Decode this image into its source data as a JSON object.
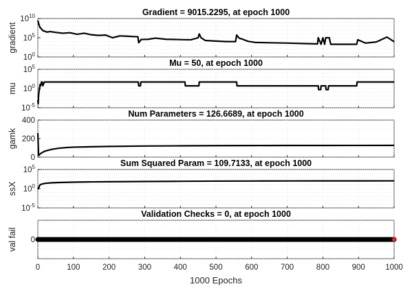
{
  "chart_data": [
    {
      "type": "line",
      "title": "Gradient = 9015.2295, at epoch 1000",
      "xlabel": "",
      "ylabel": "gradient",
      "yscale": "log",
      "ylim": [
        1,
        10000000000
      ],
      "yticks": [
        {
          "base": "10",
          "exp": "0",
          "value": 1
        },
        {
          "base": "10",
          "exp": "5",
          "value": 100000
        },
        {
          "base": "10",
          "exp": "10",
          "value": 10000000000
        }
      ],
      "xlim": [
        0,
        1000
      ],
      "grid": true,
      "series": [
        {
          "x": [
            0,
            3,
            6,
            10,
            15,
            20,
            25,
            35,
            50,
            70,
            90,
            110,
            130,
            150,
            170,
            190,
            210,
            230,
            250,
            270,
            281,
            283,
            290,
            310,
            330,
            360,
            390,
            415,
            430,
            450,
            453,
            458,
            470,
            490,
            510,
            530,
            555,
            558,
            565,
            575,
            590,
            610,
            650,
            700,
            750,
            785,
            787,
            795,
            800,
            805,
            808,
            818,
            822,
            840,
            870,
            895,
            898,
            920,
            950,
            980,
            1000
          ],
          "y": [
            3000000000.0,
            300000000.0,
            50000000.0,
            20000000.0,
            6000000.0,
            5000000.0,
            3000000.0,
            4000000.0,
            2500000.0,
            1500000.0,
            2000000.0,
            800000.0,
            1500000.0,
            600000.0,
            400000.0,
            500000.0,
            100000.0,
            300000.0,
            250000.0,
            200000.0,
            180000.0,
            5000,
            35000.0,
            40000.0,
            80000.0,
            40000.0,
            35000.0,
            30000.0,
            30000.0,
            100000.0,
            1000000.0,
            100000.0,
            20000.0,
            15000.0,
            12000.0,
            10000.0,
            10000.0,
            500000.0,
            80000.0,
            40000.0,
            12000.0,
            6000,
            5000,
            4000,
            3000,
            2500,
            100000.0,
            2000,
            100000.0,
            2000,
            100000.0,
            100000.0,
            2000,
            2000,
            2000,
            2000,
            30000.0,
            4000,
            8000,
            150000.0,
            9015.2295
          ]
        }
      ]
    },
    {
      "type": "line",
      "title": "Mu = 50, at epoch 1000",
      "xlabel": "",
      "ylabel": "mu",
      "yscale": "log",
      "ylim": [
        1e-05,
        100000
      ],
      "yticks": [
        {
          "base": "10",
          "exp": "-5",
          "value": 1e-05
        },
        {
          "base": "10",
          "exp": "0",
          "value": 1
        },
        {
          "base": "10",
          "exp": "5",
          "value": 100000
        }
      ],
      "xlim": [
        0,
        1000
      ],
      "grid": true,
      "series": [
        {
          "x": [
            0,
            1,
            2,
            3,
            5,
            6,
            8,
            10,
            12,
            14,
            18,
            22,
            282,
            283,
            288,
            289,
            413,
            414,
            452,
            453,
            558,
            559,
            787,
            788,
            794,
            795,
            808,
            809,
            815,
            816,
            895,
            896,
            1000
          ],
          "y": [
            0.001,
            0.0001,
            0.01,
            0.1,
            1,
            10,
            5,
            50,
            50,
            5,
            50,
            50,
            50,
            5,
            5,
            50,
            50,
            5,
            5,
            50,
            50,
            5,
            5,
            0.5,
            0.5,
            5,
            5,
            0.5,
            0.5,
            5,
            5,
            50,
            50
          ]
        }
      ]
    },
    {
      "type": "line",
      "title": "Num Parameters = 126.6689, at epoch 1000",
      "xlabel": "",
      "ylabel": "gamk",
      "yscale": "linear",
      "ylim": [
        0,
        400
      ],
      "yticks": [
        {
          "base": "0",
          "exp": "",
          "value": 0
        },
        {
          "base": "200",
          "exp": "",
          "value": 200
        },
        {
          "base": "400",
          "exp": "",
          "value": 400
        }
      ],
      "xlim": [
        0,
        1000
      ],
      "grid": true,
      "series": [
        {
          "x": [
            0,
            1,
            2,
            3,
            5,
            10,
            20,
            40,
            60,
            80,
            100,
            150,
            200,
            300,
            400,
            500,
            600,
            700,
            800,
            900,
            1000
          ],
          "y": [
            260,
            150,
            30,
            20,
            30,
            45,
            65,
            85,
            97,
            103,
            108,
            112,
            116,
            120,
            122,
            124,
            125,
            126,
            126,
            126.5,
            126.6689
          ]
        }
      ]
    },
    {
      "type": "line",
      "title": "Sum Squared Param = 109.7133, at epoch 1000",
      "xlabel": "",
      "ylabel": "ssX",
      "yscale": "log",
      "ylim": [
        1e-05,
        100000
      ],
      "yticks": [
        {
          "base": "10",
          "exp": "-5",
          "value": 1e-05
        },
        {
          "base": "10",
          "exp": "0",
          "value": 1
        },
        {
          "base": "10",
          "exp": "5",
          "value": 100000
        }
      ],
      "xlim": [
        0,
        1000
      ],
      "grid": true,
      "series": [
        {
          "x": [
            0,
            2,
            5,
            10,
            20,
            40,
            60,
            100,
            150,
            200,
            300,
            400,
            500,
            600,
            700,
            800,
            900,
            1000
          ],
          "y": [
            2,
            1,
            8,
            15,
            25,
            35,
            40,
            50,
            60,
            65,
            75,
            85,
            95,
            100,
            105,
            108,
            109,
            109.7133
          ]
        }
      ]
    },
    {
      "type": "line",
      "title": "Validation Checks = 0, at epoch 1000",
      "xlabel": "1000 Epochs",
      "ylabel": "val fail",
      "yscale": "linear",
      "ylim": [
        -1,
        1
      ],
      "yticks": [
        {
          "base": "0",
          "exp": "",
          "value": 0
        }
      ],
      "xlim": [
        0,
        1000
      ],
      "xticks": [
        "0",
        "100",
        "200",
        "300",
        "400",
        "500",
        "600",
        "700",
        "800",
        "900",
        "1000"
      ],
      "grid": true,
      "marker": "circle",
      "last_marker_color": "#d62728",
      "series": [
        {
          "x": [
            0,
            1000
          ],
          "y": [
            0,
            0
          ]
        }
      ]
    }
  ]
}
